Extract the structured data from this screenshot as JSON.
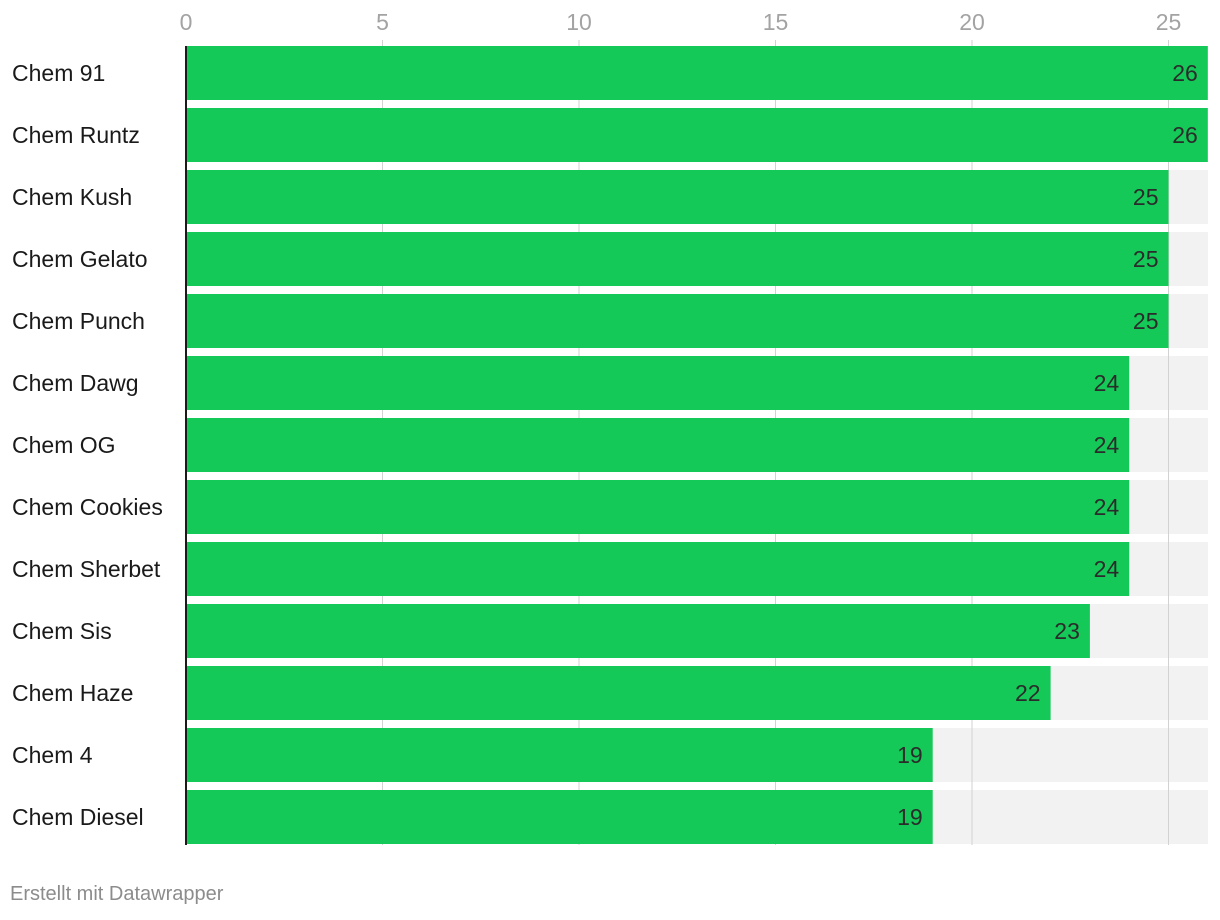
{
  "chart_data": {
    "type": "bar",
    "orientation": "horizontal",
    "categories": [
      "Chem 91",
      "Chem Runtz",
      "Chem Kush",
      "Chem Gelato",
      "Chem Punch",
      "Chem Dawg",
      "Chem OG",
      "Chem Cookies",
      "Chem Sherbet",
      "Chem Sis",
      "Chem Haze",
      "Chem 4",
      "Chem Diesel"
    ],
    "values": [
      26,
      26,
      25,
      25,
      25,
      24,
      24,
      24,
      24,
      23,
      22,
      19,
      19
    ],
    "xlim": [
      0,
      26
    ],
    "xticks": [
      0,
      5,
      10,
      15,
      20,
      25
    ],
    "title": "",
    "xlabel": "",
    "ylabel": "",
    "grid": true,
    "legend": "none",
    "bar_color": "#14c957",
    "track_color": "#f2f2f2"
  },
  "footer": {
    "credit": "Erstellt mit Datawrapper"
  }
}
